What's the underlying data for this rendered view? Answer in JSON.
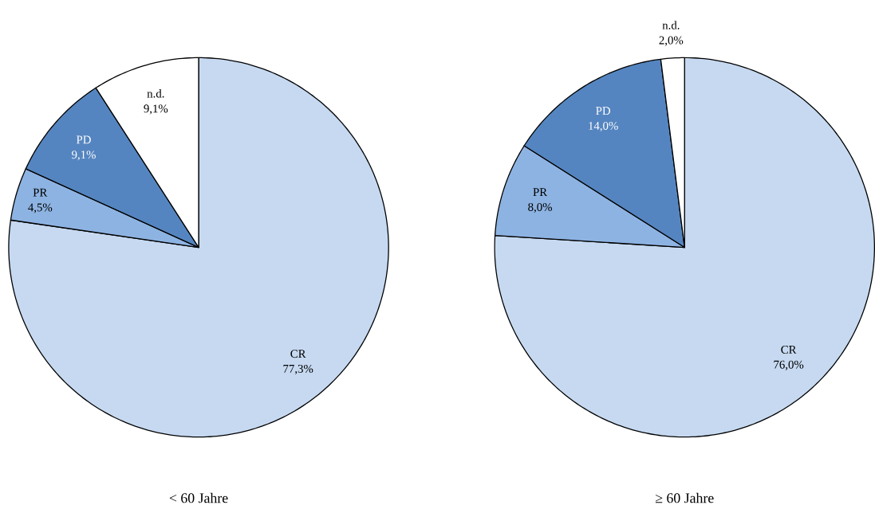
{
  "chart_data": [
    {
      "type": "pie",
      "title": "< 60 Jahre",
      "categories": [
        "CR",
        "PR",
        "PD",
        "n.d."
      ],
      "values": [
        77.3,
        4.5,
        9.1,
        9.1
      ],
      "value_labels": [
        "77,3%",
        "4,5%",
        "9,1%",
        "9,1%"
      ],
      "colors": [
        "#c6d9f1",
        "#8db3e2",
        "#5585c0",
        "#ffffff"
      ]
    },
    {
      "type": "pie",
      "title": "≥ 60 Jahre",
      "categories": [
        "CR",
        "PR",
        "PD",
        "n.d."
      ],
      "values": [
        76.0,
        8.0,
        14.0,
        2.0
      ],
      "value_labels": [
        "76,0%",
        "8,0%",
        "14,0%",
        "2,0%"
      ],
      "colors": [
        "#c6d9f1",
        "#8db3e2",
        "#5585c0",
        "#ffffff"
      ]
    }
  ]
}
